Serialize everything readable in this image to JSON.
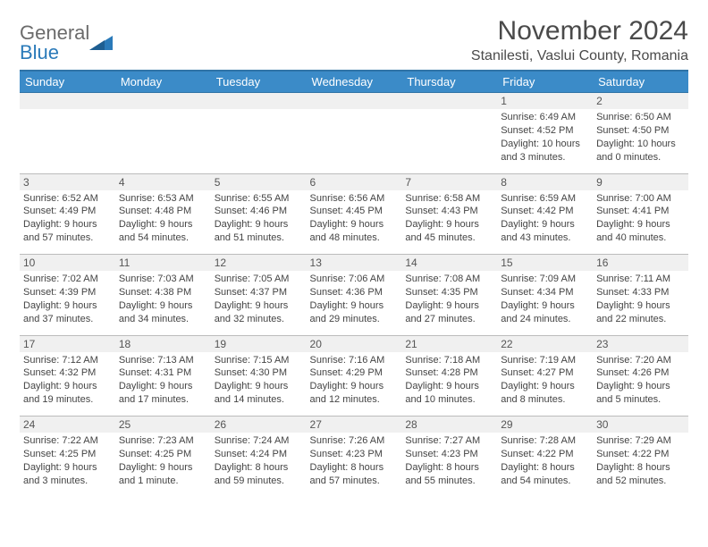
{
  "brand": {
    "line1": "General",
    "line2": "Blue"
  },
  "title": "November 2024",
  "location": "Stanilesti, Vaslui County, Romania",
  "colors": {
    "headerBar": "#3b8bc8",
    "headerBarBorder": "#2f73a6",
    "dayShade": "#f0f0f0",
    "gridLine": "#bcbcbc",
    "text": "#333333",
    "brandGray": "#6b6b6b",
    "brandBlue": "#2a7ab9"
  },
  "daysOfWeek": [
    "Sunday",
    "Monday",
    "Tuesday",
    "Wednesday",
    "Thursday",
    "Friday",
    "Saturday"
  ],
  "weeks": [
    [
      {
        "n": "",
        "sr": "",
        "ss": "",
        "dl": ""
      },
      {
        "n": "",
        "sr": "",
        "ss": "",
        "dl": ""
      },
      {
        "n": "",
        "sr": "",
        "ss": "",
        "dl": ""
      },
      {
        "n": "",
        "sr": "",
        "ss": "",
        "dl": ""
      },
      {
        "n": "",
        "sr": "",
        "ss": "",
        "dl": ""
      },
      {
        "n": "1",
        "sr": "Sunrise: 6:49 AM",
        "ss": "Sunset: 4:52 PM",
        "dl": "Daylight: 10 hours and 3 minutes."
      },
      {
        "n": "2",
        "sr": "Sunrise: 6:50 AM",
        "ss": "Sunset: 4:50 PM",
        "dl": "Daylight: 10 hours and 0 minutes."
      }
    ],
    [
      {
        "n": "3",
        "sr": "Sunrise: 6:52 AM",
        "ss": "Sunset: 4:49 PM",
        "dl": "Daylight: 9 hours and 57 minutes."
      },
      {
        "n": "4",
        "sr": "Sunrise: 6:53 AM",
        "ss": "Sunset: 4:48 PM",
        "dl": "Daylight: 9 hours and 54 minutes."
      },
      {
        "n": "5",
        "sr": "Sunrise: 6:55 AM",
        "ss": "Sunset: 4:46 PM",
        "dl": "Daylight: 9 hours and 51 minutes."
      },
      {
        "n": "6",
        "sr": "Sunrise: 6:56 AM",
        "ss": "Sunset: 4:45 PM",
        "dl": "Daylight: 9 hours and 48 minutes."
      },
      {
        "n": "7",
        "sr": "Sunrise: 6:58 AM",
        "ss": "Sunset: 4:43 PM",
        "dl": "Daylight: 9 hours and 45 minutes."
      },
      {
        "n": "8",
        "sr": "Sunrise: 6:59 AM",
        "ss": "Sunset: 4:42 PM",
        "dl": "Daylight: 9 hours and 43 minutes."
      },
      {
        "n": "9",
        "sr": "Sunrise: 7:00 AM",
        "ss": "Sunset: 4:41 PM",
        "dl": "Daylight: 9 hours and 40 minutes."
      }
    ],
    [
      {
        "n": "10",
        "sr": "Sunrise: 7:02 AM",
        "ss": "Sunset: 4:39 PM",
        "dl": "Daylight: 9 hours and 37 minutes."
      },
      {
        "n": "11",
        "sr": "Sunrise: 7:03 AM",
        "ss": "Sunset: 4:38 PM",
        "dl": "Daylight: 9 hours and 34 minutes."
      },
      {
        "n": "12",
        "sr": "Sunrise: 7:05 AM",
        "ss": "Sunset: 4:37 PM",
        "dl": "Daylight: 9 hours and 32 minutes."
      },
      {
        "n": "13",
        "sr": "Sunrise: 7:06 AM",
        "ss": "Sunset: 4:36 PM",
        "dl": "Daylight: 9 hours and 29 minutes."
      },
      {
        "n": "14",
        "sr": "Sunrise: 7:08 AM",
        "ss": "Sunset: 4:35 PM",
        "dl": "Daylight: 9 hours and 27 minutes."
      },
      {
        "n": "15",
        "sr": "Sunrise: 7:09 AM",
        "ss": "Sunset: 4:34 PM",
        "dl": "Daylight: 9 hours and 24 minutes."
      },
      {
        "n": "16",
        "sr": "Sunrise: 7:11 AM",
        "ss": "Sunset: 4:33 PM",
        "dl": "Daylight: 9 hours and 22 minutes."
      }
    ],
    [
      {
        "n": "17",
        "sr": "Sunrise: 7:12 AM",
        "ss": "Sunset: 4:32 PM",
        "dl": "Daylight: 9 hours and 19 minutes."
      },
      {
        "n": "18",
        "sr": "Sunrise: 7:13 AM",
        "ss": "Sunset: 4:31 PM",
        "dl": "Daylight: 9 hours and 17 minutes."
      },
      {
        "n": "19",
        "sr": "Sunrise: 7:15 AM",
        "ss": "Sunset: 4:30 PM",
        "dl": "Daylight: 9 hours and 14 minutes."
      },
      {
        "n": "20",
        "sr": "Sunrise: 7:16 AM",
        "ss": "Sunset: 4:29 PM",
        "dl": "Daylight: 9 hours and 12 minutes."
      },
      {
        "n": "21",
        "sr": "Sunrise: 7:18 AM",
        "ss": "Sunset: 4:28 PM",
        "dl": "Daylight: 9 hours and 10 minutes."
      },
      {
        "n": "22",
        "sr": "Sunrise: 7:19 AM",
        "ss": "Sunset: 4:27 PM",
        "dl": "Daylight: 9 hours and 8 minutes."
      },
      {
        "n": "23",
        "sr": "Sunrise: 7:20 AM",
        "ss": "Sunset: 4:26 PM",
        "dl": "Daylight: 9 hours and 5 minutes."
      }
    ],
    [
      {
        "n": "24",
        "sr": "Sunrise: 7:22 AM",
        "ss": "Sunset: 4:25 PM",
        "dl": "Daylight: 9 hours and 3 minutes."
      },
      {
        "n": "25",
        "sr": "Sunrise: 7:23 AM",
        "ss": "Sunset: 4:25 PM",
        "dl": "Daylight: 9 hours and 1 minute."
      },
      {
        "n": "26",
        "sr": "Sunrise: 7:24 AM",
        "ss": "Sunset: 4:24 PM",
        "dl": "Daylight: 8 hours and 59 minutes."
      },
      {
        "n": "27",
        "sr": "Sunrise: 7:26 AM",
        "ss": "Sunset: 4:23 PM",
        "dl": "Daylight: 8 hours and 57 minutes."
      },
      {
        "n": "28",
        "sr": "Sunrise: 7:27 AM",
        "ss": "Sunset: 4:23 PM",
        "dl": "Daylight: 8 hours and 55 minutes."
      },
      {
        "n": "29",
        "sr": "Sunrise: 7:28 AM",
        "ss": "Sunset: 4:22 PM",
        "dl": "Daylight: 8 hours and 54 minutes."
      },
      {
        "n": "30",
        "sr": "Sunrise: 7:29 AM",
        "ss": "Sunset: 4:22 PM",
        "dl": "Daylight: 8 hours and 52 minutes."
      }
    ]
  ]
}
